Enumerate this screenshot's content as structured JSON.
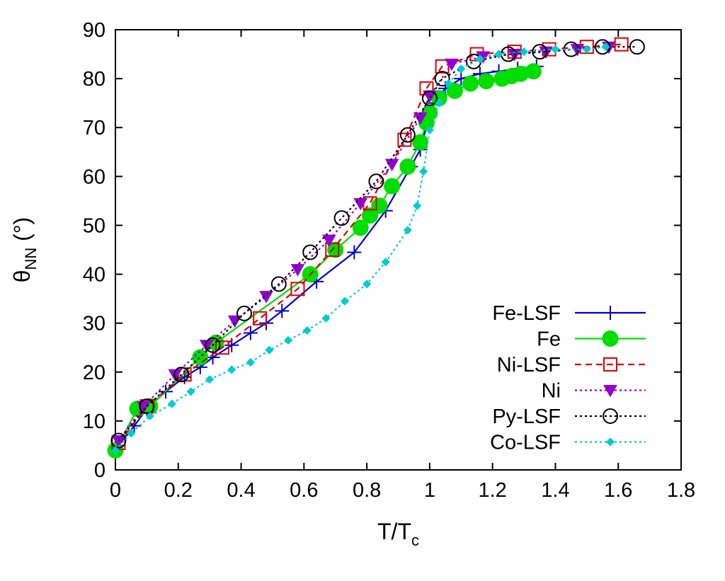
{
  "chart_data": {
    "type": "line",
    "title": "",
    "xlabel": {
      "main": "T/T",
      "sub": "c"
    },
    "ylabel": {
      "main": "θ",
      "sub": "NN",
      "unit": " (°)"
    },
    "xlim": [
      0,
      1.8
    ],
    "ylim": [
      0,
      90
    ],
    "xticks": [
      "0",
      "0.2",
      "0.4",
      "0.6",
      "0.8",
      "1",
      "1.2",
      "1.4",
      "1.6",
      "1.8"
    ],
    "yticks": [
      "0",
      "10",
      "20",
      "30",
      "40",
      "50",
      "60",
      "70",
      "80",
      "90"
    ],
    "grid": false,
    "legend_position": "bottom-right",
    "series": [
      {
        "name": "Fe-LSF",
        "color": "#0000cc",
        "marker": "plus",
        "dash": "solid",
        "points": [
          [
            0.01,
            5
          ],
          [
            0.06,
            9
          ],
          [
            0.1,
            12.5
          ],
          [
            0.16,
            16
          ],
          [
            0.22,
            19
          ],
          [
            0.27,
            21
          ],
          [
            0.31,
            23
          ],
          [
            0.37,
            25.5
          ],
          [
            0.43,
            28
          ],
          [
            0.48,
            30
          ],
          [
            0.53,
            32.5
          ],
          [
            0.64,
            38.5
          ],
          [
            0.76,
            44.5
          ],
          [
            0.86,
            53
          ],
          [
            0.94,
            62
          ],
          [
            0.97,
            65.5
          ],
          [
            1.01,
            75
          ],
          [
            1.05,
            78
          ],
          [
            1.1,
            80
          ],
          [
            1.16,
            81
          ],
          [
            1.22,
            81.5
          ],
          [
            1.28,
            82
          ],
          [
            1.34,
            82.5
          ]
        ]
      },
      {
        "name": "Fe",
        "color": "#00dd00",
        "marker": "circle-filled",
        "dash": "solid",
        "points": [
          [
            0,
            4
          ],
          [
            0.07,
            12.5
          ],
          [
            0.11,
            13
          ],
          [
            0.27,
            23
          ],
          [
            0.32,
            26
          ],
          [
            0.62,
            40
          ],
          [
            0.7,
            45
          ],
          [
            0.78,
            49.5
          ],
          [
            0.81,
            52
          ],
          [
            0.84,
            54
          ],
          [
            0.88,
            58
          ],
          [
            0.93,
            62
          ],
          [
            0.97,
            67
          ],
          [
            0.99,
            71
          ],
          [
            1.0,
            73
          ],
          [
            1.03,
            76
          ],
          [
            1.08,
            77.5
          ],
          [
            1.13,
            79
          ],
          [
            1.18,
            79.5
          ],
          [
            1.23,
            80
          ],
          [
            1.26,
            80.5
          ],
          [
            1.29,
            81
          ],
          [
            1.33,
            81.5
          ]
        ]
      },
      {
        "name": "Ni-LSF",
        "color": "#dd0000",
        "marker": "square-open",
        "dash": "dashed",
        "points": [
          [
            0.01,
            5.5
          ],
          [
            0.1,
            13
          ],
          [
            0.22,
            19.5
          ],
          [
            0.34,
            25
          ],
          [
            0.46,
            31
          ],
          [
            0.58,
            37
          ],
          [
            0.69,
            45
          ],
          [
            0.81,
            54.5
          ],
          [
            0.92,
            67.5
          ],
          [
            0.99,
            78
          ],
          [
            1.04,
            82.5
          ],
          [
            1.15,
            85
          ],
          [
            1.27,
            85.5
          ],
          [
            1.38,
            86
          ],
          [
            1.5,
            86.5
          ],
          [
            1.61,
            87
          ]
        ]
      },
      {
        "name": "Ni",
        "color": "#9400d3",
        "marker": "triangle-down",
        "dash": "dotted",
        "points": [
          [
            0.01,
            6
          ],
          [
            0.09,
            13
          ],
          [
            0.19,
            19.5
          ],
          [
            0.29,
            25.5
          ],
          [
            0.38,
            30.5
          ],
          [
            0.48,
            35.5
          ],
          [
            0.58,
            41
          ],
          [
            0.68,
            47
          ],
          [
            0.78,
            54.5
          ],
          [
            0.88,
            62.5
          ],
          [
            0.97,
            72
          ],
          [
            1.0,
            76.5
          ],
          [
            1.07,
            83
          ],
          [
            1.17,
            84.5
          ],
          [
            1.27,
            85
          ],
          [
            1.37,
            85.5
          ],
          [
            1.47,
            86
          ],
          [
            1.57,
            86.5
          ]
        ]
      },
      {
        "name": "Py-LSF",
        "color": "#000000",
        "marker": "circle-open",
        "dash": "dotted",
        "points": [
          [
            0.01,
            6
          ],
          [
            0.1,
            13
          ],
          [
            0.21,
            19.5
          ],
          [
            0.31,
            25.5
          ],
          [
            0.41,
            32
          ],
          [
            0.52,
            38
          ],
          [
            0.62,
            44.5
          ],
          [
            0.72,
            51.5
          ],
          [
            0.83,
            59
          ],
          [
            0.93,
            68.5
          ],
          [
            1.0,
            76
          ],
          [
            1.04,
            80
          ],
          [
            1.14,
            83.5
          ],
          [
            1.25,
            85
          ],
          [
            1.35,
            85.5
          ],
          [
            1.45,
            86
          ],
          [
            1.55,
            86.5
          ],
          [
            1.66,
            86.5
          ]
        ]
      },
      {
        "name": "Co-LSF",
        "color": "#00cccc",
        "marker": "diamond",
        "dash": "dotted",
        "points": [
          [
            0,
            4
          ],
          [
            0.05,
            7.5
          ],
          [
            0.11,
            11
          ],
          [
            0.18,
            13.5
          ],
          [
            0.24,
            16
          ],
          [
            0.3,
            18.5
          ],
          [
            0.37,
            20.5
          ],
          [
            0.43,
            22
          ],
          [
            0.49,
            24.5
          ],
          [
            0.55,
            26.5
          ],
          [
            0.61,
            28.5
          ],
          [
            0.67,
            31
          ],
          [
            0.73,
            34.5
          ],
          [
            0.8,
            38
          ],
          [
            0.86,
            42.5
          ],
          [
            0.93,
            49
          ],
          [
            0.96,
            54
          ],
          [
            0.98,
            61
          ],
          [
            1.0,
            69.5
          ],
          [
            1.03,
            75
          ],
          [
            1.06,
            79
          ],
          [
            1.1,
            82
          ],
          [
            1.16,
            84
          ],
          [
            1.22,
            85
          ],
          [
            1.3,
            85.5
          ],
          [
            1.4,
            86
          ],
          [
            1.5,
            86
          ],
          [
            1.56,
            86.5
          ]
        ]
      }
    ]
  }
}
